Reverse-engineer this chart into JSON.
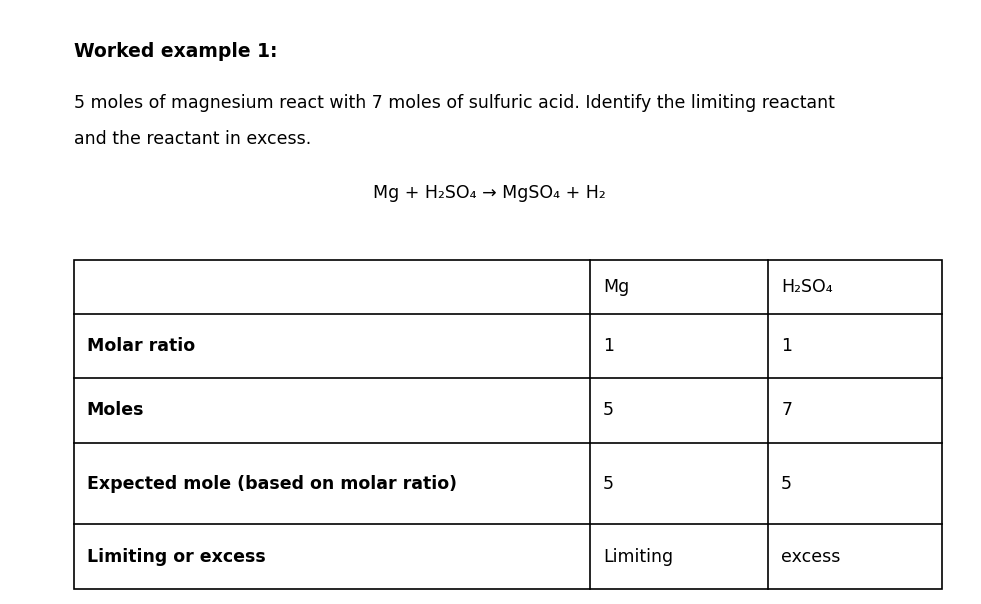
{
  "title": "Worked example 1:",
  "description_line1": "5 moles of magnesium react with 7 moles of sulfuric acid. Identify the limiting reactant",
  "description_line2": "and the reactant in excess.",
  "equation": "Mg + H₂SO₄ → MgSO₄ + H₂",
  "col_headers": [
    "",
    "Mg",
    "H₂SO₄"
  ],
  "rows": [
    [
      "Molar ratio",
      "1",
      "1"
    ],
    [
      "Moles",
      "5",
      "7"
    ],
    [
      "Expected mole (based on molar ratio)",
      "5",
      "5"
    ],
    [
      "Limiting or excess",
      "Limiting",
      "excess"
    ]
  ],
  "background_color": "#ffffff",
  "text_color": "#000000",
  "table_line_color": "#000000",
  "title_fontsize": 13.5,
  "body_fontsize": 12.5,
  "equation_fontsize": 12.5,
  "table_header_fontsize": 12.5,
  "table_body_fontsize": 12.5
}
